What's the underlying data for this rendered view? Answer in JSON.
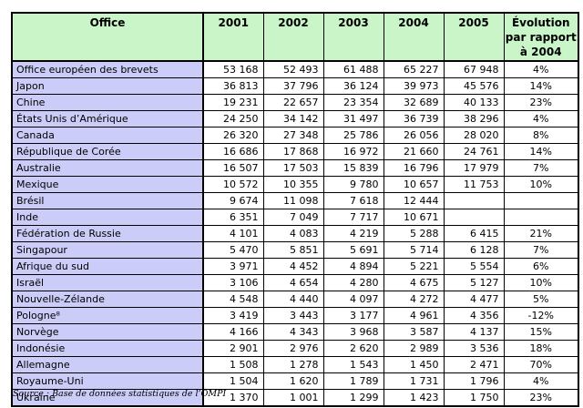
{
  "colors": {
    "header_bg": "#c9f5c9",
    "office_col_bg": "#cbccf7",
    "border": "#000000"
  },
  "table": {
    "columns": [
      "Office",
      "2001",
      "2002",
      "2003",
      "2004",
      "2005",
      "Évolution\npar rapport\nà 2004"
    ],
    "rows": [
      {
        "office": "Office européen des brevets",
        "values": [
          "53 168",
          "52 493",
          "61 488",
          "65 227",
          "67 948",
          "4%"
        ]
      },
      {
        "office": "Japon",
        "values": [
          "36 813",
          "37 796",
          "36 124",
          "39 973",
          "45 576",
          "14%"
        ]
      },
      {
        "office": "Chine",
        "values": [
          "19 231",
          "22 657",
          "23 354",
          "32 689",
          "40 133",
          "23%"
        ]
      },
      {
        "office": "États Unis d’Amérique",
        "values": [
          "24 250",
          "34 142",
          "31 497",
          "36 739",
          "38 296",
          "4%"
        ]
      },
      {
        "office": "Canada",
        "values": [
          "26 320",
          "27 348",
          "25 786",
          "26 056",
          "28 020",
          "8%"
        ]
      },
      {
        "office": "République de Corée",
        "values": [
          "16 686",
          "17 868",
          "16 972",
          "21 660",
          "24 761",
          "14%"
        ]
      },
      {
        "office": "Australie",
        "values": [
          "16 507",
          "17 503",
          "15 839",
          "16 796",
          "17 979",
          "7%"
        ]
      },
      {
        "office": "Mexique",
        "values": [
          "10 572",
          "10 355",
          "9 780",
          "10 657",
          "11 753",
          "10%"
        ]
      },
      {
        "office": "Brésil",
        "values": [
          "9 674",
          "11 098",
          "7 618",
          "12 444",
          "",
          ""
        ]
      },
      {
        "office": "Inde",
        "values": [
          "6 351",
          "7 049",
          "7 717",
          "10 671",
          "",
          ""
        ]
      },
      {
        "office": "Fédération de Russie",
        "values": [
          "4 101",
          "4 083",
          "4 219",
          "5 288",
          "6 415",
          "21%"
        ]
      },
      {
        "office": "Singapour",
        "values": [
          "5 470",
          "5 851",
          "5 691",
          "5 714",
          "6 128",
          "7%"
        ]
      },
      {
        "office": "Afrique du sud",
        "values": [
          "3 971",
          "4 452",
          "4 894",
          "5 221",
          "5 554",
          "6%"
        ]
      },
      {
        "office": "Israël",
        "values": [
          "3 106",
          "4 654",
          "4 280",
          "4 675",
          "5 127",
          "10%"
        ]
      },
      {
        "office": "Nouvelle-Zélande",
        "values": [
          "4 548",
          "4 440",
          "4 097",
          "4 272",
          "4 477",
          "5%"
        ]
      },
      {
        "office": "Pologne⁸",
        "values": [
          "3 419",
          "3 443",
          "3 177",
          "4 961",
          "4 356",
          "-12%"
        ]
      },
      {
        "office": "Norvège",
        "values": [
          "4 166",
          "4 343",
          "3 968",
          "3 587",
          "4 137",
          "15%"
        ]
      },
      {
        "office": "Indonésie",
        "values": [
          "2 901",
          "2 976",
          "2 620",
          "2 989",
          "3 536",
          "18%"
        ]
      },
      {
        "office": "Allemagne",
        "values": [
          "1 508",
          "1 278",
          "1 543",
          "1 450",
          "2 471",
          "70%"
        ]
      },
      {
        "office": "Royaume-Uni",
        "values": [
          "1 504",
          "1 620",
          "1 789",
          "1 731",
          "1 796",
          "4%"
        ]
      },
      {
        "office": "Ukraine",
        "values": [
          "1 370",
          "1 001",
          "1 299",
          "1 423",
          "1 750",
          "23%"
        ]
      }
    ]
  },
  "footer": {
    "source": "Source : Base de données statistiques de l’OMPI"
  }
}
